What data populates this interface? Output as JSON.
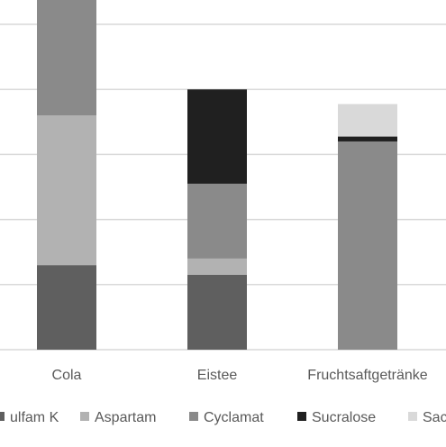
{
  "chart_data": {
    "type": "bar",
    "stacked": true,
    "categories": [
      "Cola",
      "Eistee",
      "Fruchtsaftgetränke"
    ],
    "series": [
      {
        "name": "Acesulfam K",
        "color": "#5f5f5f",
        "values": [
          2.6,
          2.3,
          0
        ]
      },
      {
        "name": "Aspartam",
        "color": "#b2b2b2",
        "values": [
          4.6,
          0.5,
          0
        ]
      },
      {
        "name": "Cyclamat",
        "color": "#8a8a8a",
        "values": [
          5.0,
          2.3,
          6.4
        ]
      },
      {
        "name": "Sucralose",
        "color": "#202020",
        "values": [
          0,
          2.9,
          0.15
        ]
      },
      {
        "name": "Saccharin",
        "color": "#d9d9d9",
        "values": [
          0,
          0,
          1.0
        ]
      }
    ],
    "ylim": [
      0,
      14
    ],
    "gridlines": [
      2,
      4,
      6,
      8,
      10,
      12,
      14
    ],
    "grid": true,
    "legend_position": "bottom",
    "legend_visible_labels": [
      "ulfam K",
      "Aspartam",
      "Cyclamat",
      "Sucralose",
      "Sac"
    ],
    "title": "",
    "xlabel": "",
    "ylabel": ""
  }
}
